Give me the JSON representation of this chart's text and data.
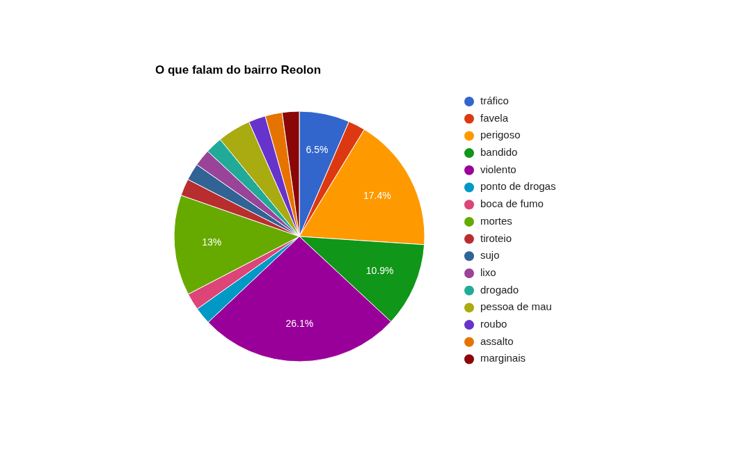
{
  "chart_data": {
    "type": "pie",
    "title": "O que falam do bairro Reolon",
    "categories": [
      "tráfico",
      "favela",
      "perigoso",
      "bandido",
      "violento",
      "ponto de drogas",
      "boca de fumo",
      "mortes",
      "tiroteio",
      "sujo",
      "lixo",
      "drogado",
      "pessoa de mau",
      "roubo",
      "assalto",
      "marginais"
    ],
    "values": [
      6.5,
      2.2,
      17.4,
      10.9,
      26.1,
      2.2,
      2.2,
      13,
      2.2,
      2.2,
      2.2,
      2.2,
      4.3,
      2.2,
      2.2,
      2.2
    ],
    "value_labels": [
      "6.5%",
      null,
      "17.4%",
      "10.9%",
      "26.1%",
      null,
      null,
      "13%",
      null,
      null,
      null,
      null,
      null,
      null,
      null,
      null
    ],
    "colors": [
      "#3366cc",
      "#dc3912",
      "#ff9900",
      "#109618",
      "#990099",
      "#0099c6",
      "#dd4477",
      "#66aa00",
      "#b82e2e",
      "#316395",
      "#994499",
      "#22aa99",
      "#aaaa11",
      "#6633cc",
      "#e67300",
      "#8b0707"
    ],
    "legend": "right"
  }
}
